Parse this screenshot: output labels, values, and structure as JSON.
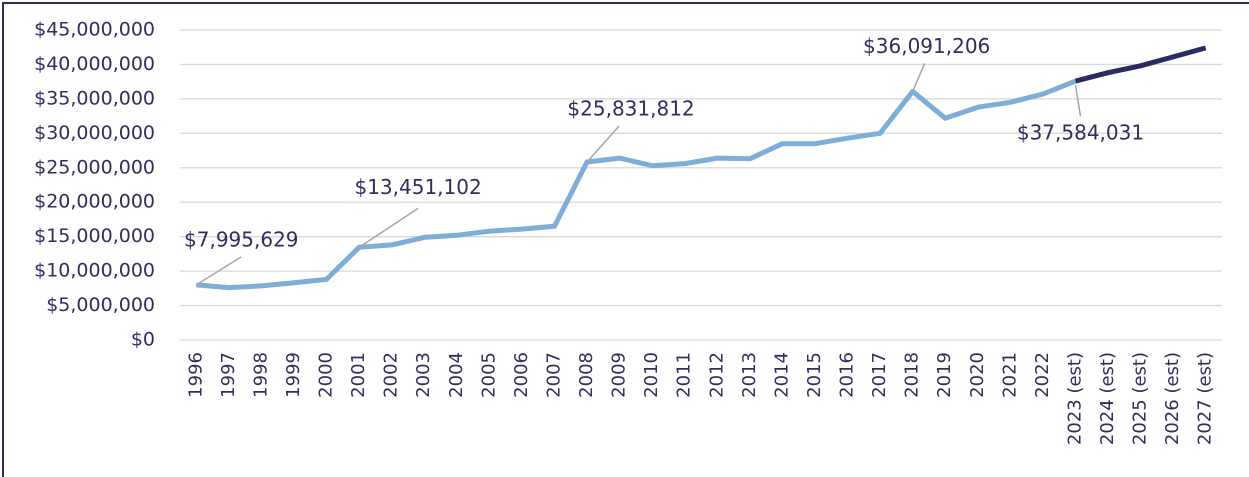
{
  "chart_data": {
    "type": "line",
    "categories": [
      "1996",
      "1997",
      "1998",
      "1999",
      "2000",
      "2001",
      "2002",
      "2003",
      "2004",
      "2005",
      "2006",
      "2007",
      "2008",
      "2009",
      "2010",
      "2011",
      "2012",
      "2013",
      "2014",
      "2015",
      "2016",
      "2017",
      "2018",
      "2019",
      "2020",
      "2021",
      "2022",
      "2023 (est)",
      "2024 (est)",
      "2025 (est)",
      "2026 (est)",
      "2027 (est)"
    ],
    "series": [
      {
        "color": "#7eaed8",
        "values": [
          7995629,
          7600000,
          7850000,
          8300000,
          8800000,
          13451102,
          13800000,
          14900000,
          15200000,
          15800000,
          16100000,
          16500000,
          25831812,
          26400000,
          25300000,
          25600000,
          26400000,
          26300000,
          28500000,
          28500000,
          29300000,
          30000000,
          36091206,
          32200000,
          33800000,
          34500000,
          35700000,
          37584031,
          null,
          null,
          null,
          null
        ],
        "value_labels": [
          "$7,995,629",
          null,
          null,
          null,
          null,
          "$13,451,102",
          null,
          null,
          null,
          null,
          null,
          null,
          "$25,831,812",
          null,
          null,
          null,
          null,
          null,
          null,
          null,
          null,
          null,
          "$36,091,206",
          null,
          null,
          null,
          null,
          "$37,584,031",
          null,
          null,
          null,
          null
        ]
      },
      {
        "color": "#2b2a63",
        "values": [
          null,
          null,
          null,
          null,
          null,
          null,
          null,
          null,
          null,
          null,
          null,
          null,
          null,
          null,
          null,
          null,
          null,
          null,
          null,
          null,
          null,
          null,
          null,
          null,
          null,
          null,
          null,
          37584031,
          38800000,
          39800000,
          41100000,
          42400000
        ]
      }
    ],
    "ylim": [
      0,
      45000000
    ],
    "yticks": [
      {
        "value": 0,
        "label": "$0"
      },
      {
        "value": 5000000,
        "label": "$5,000,000"
      },
      {
        "value": 10000000,
        "label": "$10,000,000"
      },
      {
        "value": 15000000,
        "label": "$15,000,000"
      },
      {
        "value": 20000000,
        "label": "$20,000,000"
      },
      {
        "value": 25000000,
        "label": "$25,000,000"
      },
      {
        "value": 30000000,
        "label": "$30,000,000"
      },
      {
        "value": 35000000,
        "label": "$35,000,000"
      },
      {
        "value": 40000000,
        "label": "$40,000,000"
      },
      {
        "value": 45000000,
        "label": "$45,000,000"
      }
    ],
    "grid": true
  }
}
